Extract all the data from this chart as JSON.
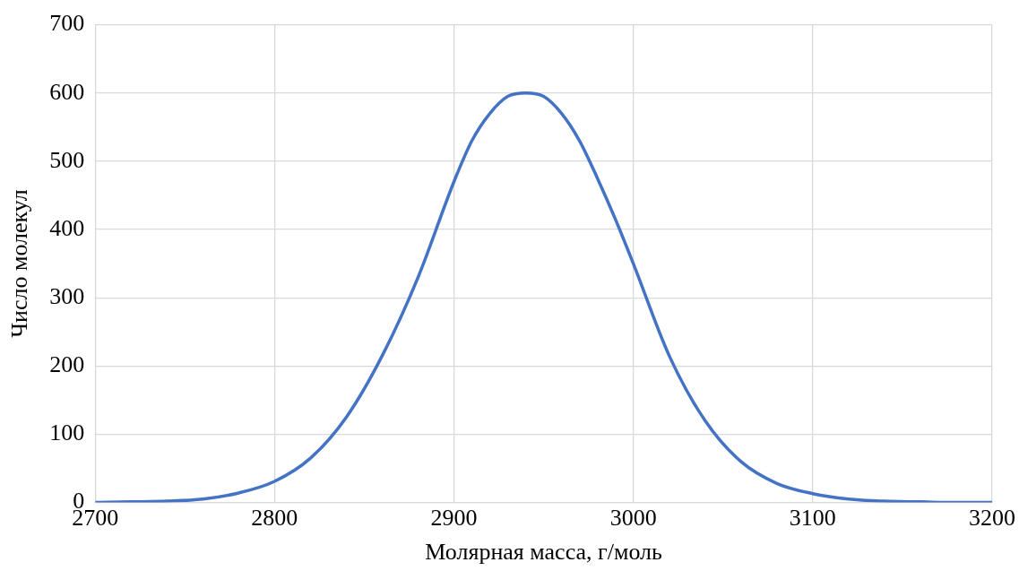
{
  "chart_data": {
    "type": "line",
    "xlabel": "Молярная масса, г/моль",
    "ylabel": "Число молекул",
    "x": [
      2700,
      2720,
      2740,
      2760,
      2780,
      2800,
      2820,
      2840,
      2860,
      2880,
      2900,
      2910,
      2920,
      2930,
      2940,
      2950,
      2960,
      2970,
      2980,
      2990,
      3000,
      3020,
      3040,
      3060,
      3080,
      3100,
      3120,
      3140,
      3160,
      3180,
      3200
    ],
    "series": [
      {
        "color": "#4472c4",
        "values": [
          0,
          1,
          2,
          5,
          14,
          31,
          65,
          125,
          215,
          330,
          470,
          530,
          570,
          595,
          600,
          595,
          570,
          530,
          475,
          415,
          350,
          215,
          120,
          60,
          28,
          13,
          5,
          2,
          1,
          0,
          0
        ]
      }
    ],
    "xlim": [
      2700,
      3200
    ],
    "xticks": [
      2700,
      2800,
      2900,
      3000,
      3100,
      3200
    ],
    "ylim": [
      0,
      700
    ],
    "yticks": [
      0,
      100,
      200,
      300,
      400,
      500,
      600,
      700
    ],
    "grid": true,
    "legend": false,
    "marker": "none",
    "line_style": "solid"
  }
}
